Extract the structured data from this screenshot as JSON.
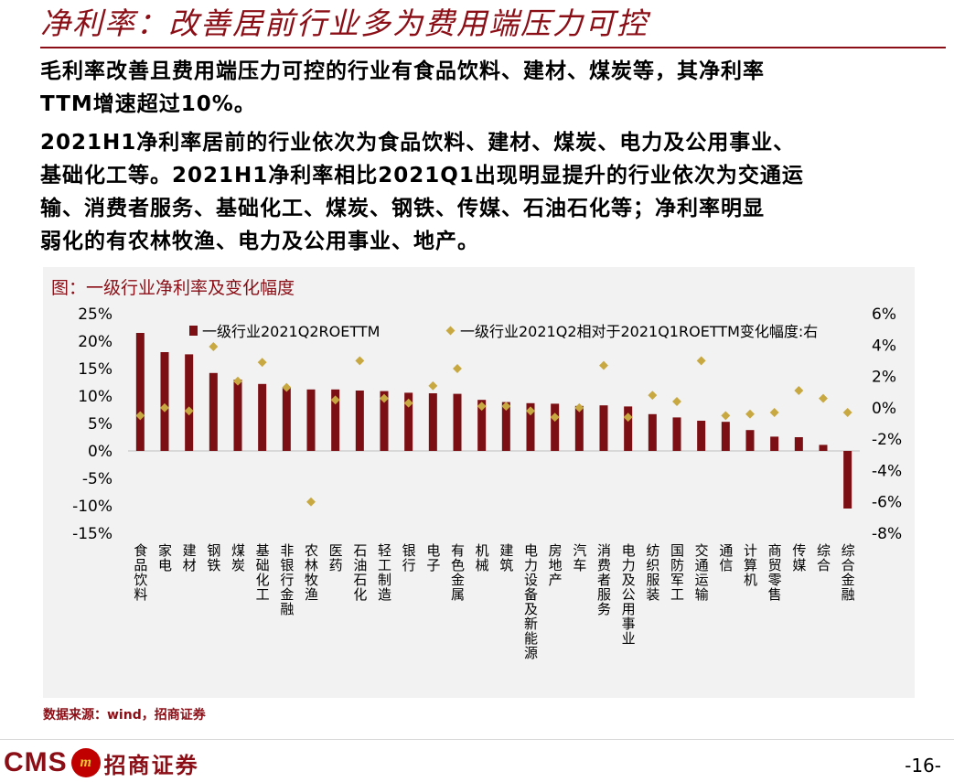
{
  "page": {
    "title": "净利率：改善居前行业多为费用端压力可控",
    "paragraphs": [
      [
        "毛利率改善且费用端压力可控的行业有食品饮料、建材、煤炭等，其净利率",
        "TTM增速超过10%。"
      ],
      [
        "2021H1净利率居前的行业依次为食品饮料、建材、煤炭、电力及公用事业、",
        "基础化工等。2021H1净利率相比2021Q1出现明显提升的行业依次为交通运",
        "输、消费者服务、基础化工、煤炭、钢铁、传媒、石油石化等；净利率明显",
        "弱化的有农林牧渔、电力及公用事业、地产。"
      ]
    ],
    "chart_caption": "图：一级行业净利率及变化幅度",
    "source": "数据来源：wind，招商证券",
    "page_number": "-16-",
    "logo_text": "CMS",
    "logo_emblem": "m",
    "logo_cn": "招商证券"
  },
  "chart_data": {
    "type": "bar+scatter",
    "categories": [
      "食品饮料",
      "家电",
      "建材",
      "钢铁",
      "煤炭",
      "基础化工",
      "非银行金融",
      "农林牧渔",
      "医药",
      "石油石化",
      "轻工制造",
      "银行",
      "电子",
      "有色金属",
      "机械",
      "建筑",
      "电力设备及新能源",
      "房地产",
      "汽车",
      "消费者服务",
      "电力及公用事业",
      "纺织服装",
      "国防军工",
      "交通运输",
      "通信",
      "计算机",
      "商贸零售",
      "传媒",
      "综合",
      "综合金融"
    ],
    "series": [
      {
        "name": "一级行业2021Q2ROETTM",
        "type": "bar",
        "axis": "left",
        "color": "#7b0f13",
        "values": [
          21.5,
          18.0,
          17.6,
          14.2,
          13.0,
          12.2,
          11.5,
          11.2,
          11.2,
          11.0,
          10.9,
          10.6,
          10.5,
          10.4,
          9.3,
          8.9,
          8.7,
          8.6,
          8.2,
          8.3,
          8.1,
          6.7,
          6.1,
          5.5,
          5.3,
          3.8,
          2.6,
          2.5,
          1.1,
          -10.5
        ]
      },
      {
        "name": "一级行业2021Q2相对于2021Q1ROETTM变化幅度:右",
        "type": "scatter",
        "axis": "right",
        "color": "#c8a840",
        "values": [
          -0.5,
          0.0,
          -0.2,
          3.9,
          1.7,
          2.9,
          1.3,
          -6.0,
          0.5,
          3.0,
          0.6,
          0.3,
          1.4,
          2.5,
          0.1,
          0.1,
          -0.2,
          -0.6,
          0.0,
          2.7,
          -0.6,
          0.8,
          0.4,
          3.0,
          -0.5,
          -0.4,
          -0.3,
          1.1,
          0.6,
          -0.3
        ]
      }
    ],
    "left_axis": {
      "min": -15,
      "max": 25,
      "step": 5,
      "format": "%"
    },
    "right_axis": {
      "min": -8,
      "max": 6,
      "step": 2,
      "format": "%"
    },
    "legend_position": "top"
  }
}
